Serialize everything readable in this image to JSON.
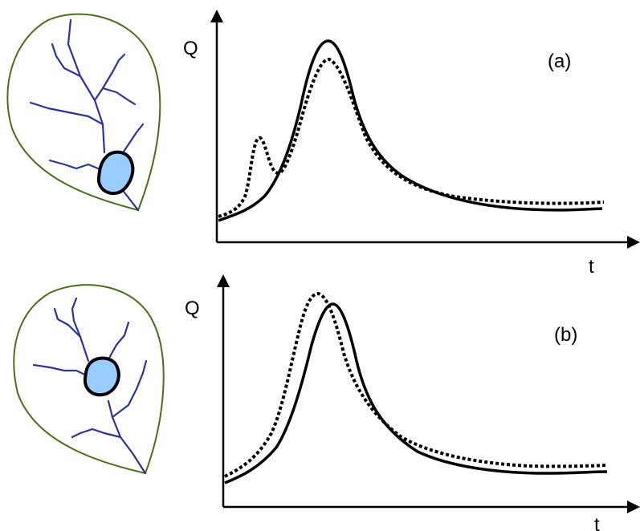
{
  "figure": {
    "panel_a": {
      "label": "(a)",
      "y_axis": "Q",
      "x_axis": "t"
    },
    "panel_b": {
      "label": "(b)",
      "y_axis": "Q",
      "x_axis": "t"
    }
  },
  "colors": {
    "catchment_outline": "#4a6e1c",
    "river": "#2d3594",
    "lake_fill": "#99ccff",
    "hydrograph": "#000000"
  }
}
